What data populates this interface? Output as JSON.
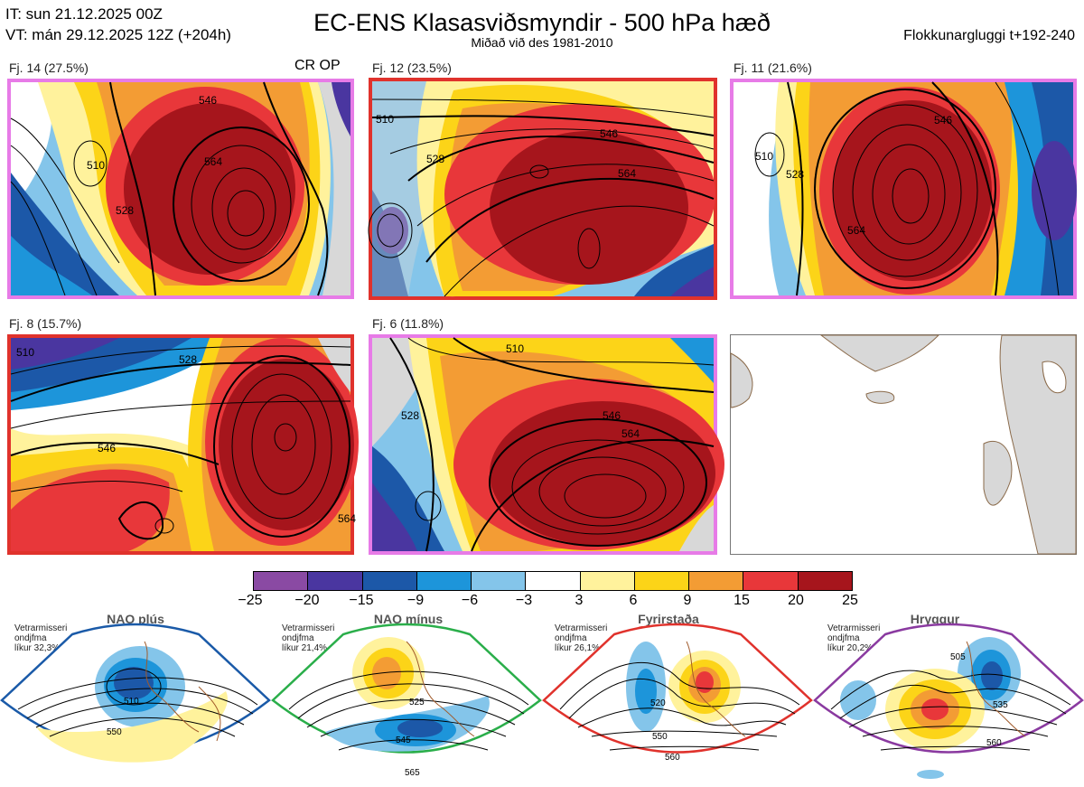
{
  "header": {
    "it_line": "IT: sun 21.12.2025 00Z",
    "vt_line": "VT: mán 29.12.2025 12Z  (+204h)",
    "title": "EC-ENS Klasasviðsmyndir - 500 hPa hæð",
    "subtitle": "Miðað við des 1981-2010",
    "window": "Flokkunargluggi t+192-240"
  },
  "markers": {
    "crop": "CR OP"
  },
  "clusters": [
    {
      "label": "Fj. 14 (27.5%)",
      "border": "#e77be7",
      "contours": [
        "510",
        "528",
        "546",
        "564"
      ]
    },
    {
      "label": "Fj. 12 (23.5%)",
      "border": "#e0322c",
      "contours": [
        "510",
        "528",
        "546",
        "564"
      ]
    },
    {
      "label": "Fj. 11 (21.6%)",
      "border": "#e77be7",
      "contours": [
        "510",
        "528",
        "546",
        "564"
      ]
    },
    {
      "label": "Fj. 8 (15.7%)",
      "border": "#e0322c",
      "contours": [
        "510",
        "528",
        "546",
        "564"
      ]
    },
    {
      "label": "Fj. 6 (11.8%)",
      "border": "#e77be7",
      "contours": [
        "510",
        "528",
        "546",
        "564"
      ]
    }
  ],
  "colorbar": {
    "ticks": [
      "−25",
      "−20",
      "−15",
      "−9",
      "−6",
      "−3",
      "3",
      "6",
      "9",
      "15",
      "20",
      "25"
    ],
    "colors": [
      "#8a4aa3",
      "#4a36a0",
      "#1c58a8",
      "#1d95da",
      "#84c5ea",
      "#ffffff",
      "#fff29c",
      "#fcd418",
      "#f39c34",
      "#e8373a",
      "#a6151c"
    ]
  },
  "regimes": [
    {
      "title": "NAO plús",
      "note1": "Vetrarmisseri",
      "note2": "ondjfma",
      "note3": "líkur 32,3%",
      "color": "#1a5aa8",
      "contours": [
        "510",
        "550"
      ]
    },
    {
      "title": "NAO mínus",
      "note1": "Vetrarmisseri",
      "note2": "ondjfma",
      "note3": "líkur 21,4%",
      "color": "#2aae4a",
      "contours": [
        "525",
        "545",
        "565"
      ]
    },
    {
      "title": "Fyrirstaða",
      "note1": "Vetrarmisseri",
      "note2": "ondjfma",
      "note3": "líkur 26,1%",
      "color": "#e0322c",
      "contours": [
        "520",
        "550",
        "560"
      ]
    },
    {
      "title": "Hryggur",
      "note1": "Vetrarmisseri",
      "note2": "ondjfma",
      "note3": "líkur 20,2%",
      "color": "#e86ee6",
      "contours": [
        "505",
        "535",
        "560"
      ]
    }
  ]
}
